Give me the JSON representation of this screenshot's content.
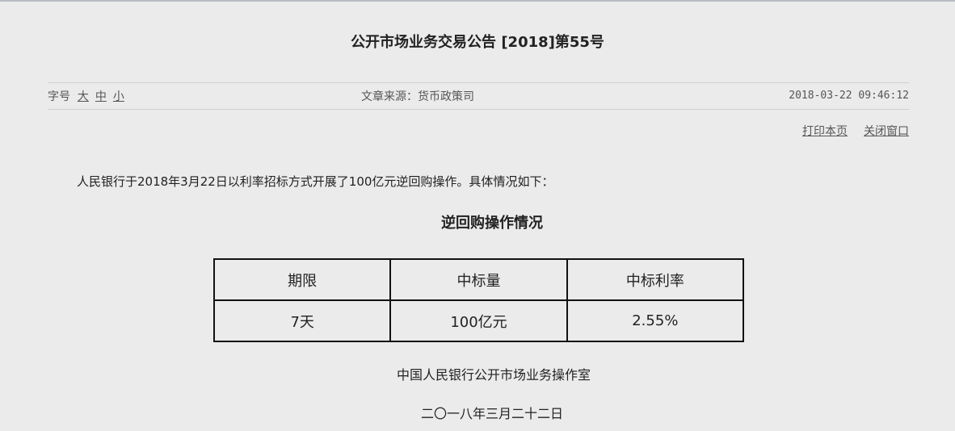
{
  "header": {
    "title": "公开市场业务交易公告 [2018]第55号",
    "font_size_label": "字号",
    "font_sizes": [
      "大",
      "中",
      "小"
    ],
    "source": "文章来源：货币政策司",
    "date": "2018-03-22 09:46:12",
    "actions": [
      "打印本页",
      "关闭窗口"
    ]
  },
  "body": {
    "paragraph": "人民银行于2018年3月22日以利率招标方式开展了100亿元逆回购操作。具体情况如下：",
    "table_title": "逆回购操作情况",
    "table": {
      "header": [
        "期限",
        "中标量",
        "中标利率"
      ],
      "rows": [
        [
          "7天",
          "100亿元",
          "2.55%"
        ]
      ]
    },
    "signature": "中国人民银行公开市场业务操作室",
    "date": "二〇一八年三月二十二日"
  }
}
